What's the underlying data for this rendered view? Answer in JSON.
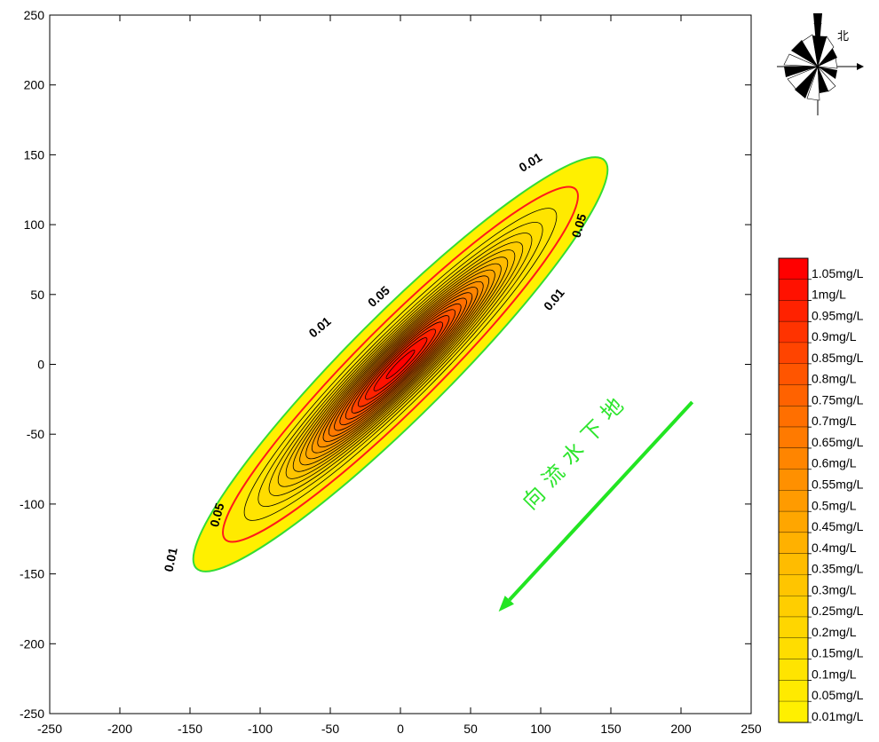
{
  "chart_data": {
    "type": "contour",
    "title": "",
    "xlabel": "",
    "ylabel": "",
    "xlim": [
      -250,
      250
    ],
    "ylim": [
      -250,
      250
    ],
    "x_ticks": [
      -250,
      -200,
      -150,
      -100,
      -50,
      0,
      50,
      100,
      150,
      200,
      250
    ],
    "y_ticks": [
      -250,
      -200,
      -150,
      -100,
      -50,
      0,
      50,
      100,
      150,
      200,
      250
    ],
    "plume": {
      "center": [
        0,
        0
      ],
      "major_axis_angle_deg": 45,
      "outer_extent": {
        "x": [
          -165,
          165
        ],
        "y": [
          -165,
          165
        ]
      },
      "peak_value_mg_per_l": 1.05
    },
    "contour_levels": [
      0.01,
      0.05,
      0.1,
      0.15,
      0.2,
      0.25,
      0.3,
      0.35,
      0.4,
      0.45,
      0.5,
      0.55,
      0.6,
      0.65,
      0.7,
      0.75,
      0.8,
      0.85,
      0.9,
      0.95,
      1.0,
      1.05
    ],
    "contour_labels": [
      {
        "text": "0.01",
        "x": 93,
        "y": 144,
        "angle": -32
      },
      {
        "text": "0.01",
        "x": -57,
        "y": 26,
        "angle": -40
      },
      {
        "text": "0.01",
        "x": 110,
        "y": 46,
        "angle": -50
      },
      {
        "text": "0.01",
        "x": -163,
        "y": -140,
        "angle": -78
      },
      {
        "text": "0.05",
        "x": 128,
        "y": 99,
        "angle": -74
      },
      {
        "text": "0.05",
        "x": -15,
        "y": 48,
        "angle": -42
      },
      {
        "text": "0.05",
        "x": -130,
        "y": -108,
        "angle": -75
      }
    ],
    "legend": {
      "position": "right",
      "entries": [
        {
          "label": "1.05mg/L",
          "color": "#ff0000"
        },
        {
          "label": "1mg/L",
          "color": "#ff1100"
        },
        {
          "label": "0.95mg/L",
          "color": "#ff2200"
        },
        {
          "label": "0.9mg/L",
          "color": "#ff3300"
        },
        {
          "label": "0.85mg/L",
          "color": "#ff4400"
        },
        {
          "label": "0.8mg/L",
          "color": "#ff5500"
        },
        {
          "label": "0.75mg/L",
          "color": "#ff6200"
        },
        {
          "label": "0.7mg/L",
          "color": "#ff6f00"
        },
        {
          "label": "0.65mg/L",
          "color": "#ff7a00"
        },
        {
          "label": "0.6mg/L",
          "color": "#ff8500"
        },
        {
          "label": "0.55mg/L",
          "color": "#ff9000"
        },
        {
          "label": "0.5mg/L",
          "color": "#ff9b00"
        },
        {
          "label": "0.45mg/L",
          "color": "#ffa600"
        },
        {
          "label": "0.4mg/L",
          "color": "#ffb100"
        },
        {
          "label": "0.35mg/L",
          "color": "#ffbc00"
        },
        {
          "label": "0.3mg/L",
          "color": "#ffc500"
        },
        {
          "label": "0.25mg/L",
          "color": "#ffce00"
        },
        {
          "label": "0.2mg/L",
          "color": "#ffd600"
        },
        {
          "label": "0.15mg/L",
          "color": "#ffdd00"
        },
        {
          "label": "0.1mg/L",
          "color": "#ffe400"
        },
        {
          "label": "0.05mg/L",
          "color": "#ffea00"
        },
        {
          "label": "0.01mg/L",
          "color": "#fff000"
        }
      ]
    },
    "annotations": {
      "flow_direction_text": [
        "地",
        "下",
        "水",
        "流",
        "向"
      ],
      "flow_arrow": {
        "from": [
          208,
          -27
        ],
        "to": [
          70,
          -177
        ]
      },
      "north_label": "北"
    }
  },
  "colors": {
    "outer_contour": "#33dd33",
    "secondary_contour": "#ff1a1a",
    "inner_contour": "#000000",
    "flow_arrow": "#22e522",
    "plume_outer_fill": "#fff200"
  }
}
